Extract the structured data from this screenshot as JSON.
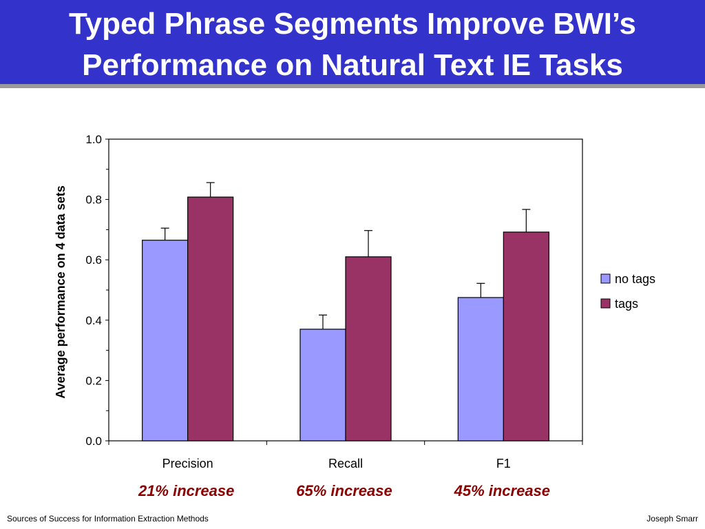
{
  "slide": {
    "title_line1": "Typed Phrase Segments Improve BWI’s",
    "title_line2": "Performance on Natural Text IE Tasks",
    "title_bg": "#3333cc",
    "footer_left": "Sources of Success for Information Extraction Methods",
    "footer_right": "Joseph Smarr"
  },
  "chart_data": {
    "type": "bar",
    "title": "",
    "xlabel": "",
    "ylabel": "Average performance on 4 data sets",
    "categories": [
      "Precision",
      "Recall",
      "F1"
    ],
    "ylim": [
      0,
      1.0
    ],
    "yticks": [
      "0.0",
      "0.2",
      "0.4",
      "0.6",
      "0.8",
      "1.0"
    ],
    "grid": false,
    "legend_position": "right",
    "series": [
      {
        "name": "no tags",
        "color": "#9999ff",
        "values": [
          0.665,
          0.37,
          0.475
        ],
        "error": [
          0.04,
          0.047,
          0.047
        ]
      },
      {
        "name": "tags",
        "color": "#993366",
        "values": [
          0.808,
          0.61,
          0.692
        ],
        "error": [
          0.048,
          0.087,
          0.075
        ]
      }
    ],
    "annotations": [
      "21% increase",
      "65% increase",
      "45% increase"
    ],
    "annotation_color": "#8b0000"
  }
}
